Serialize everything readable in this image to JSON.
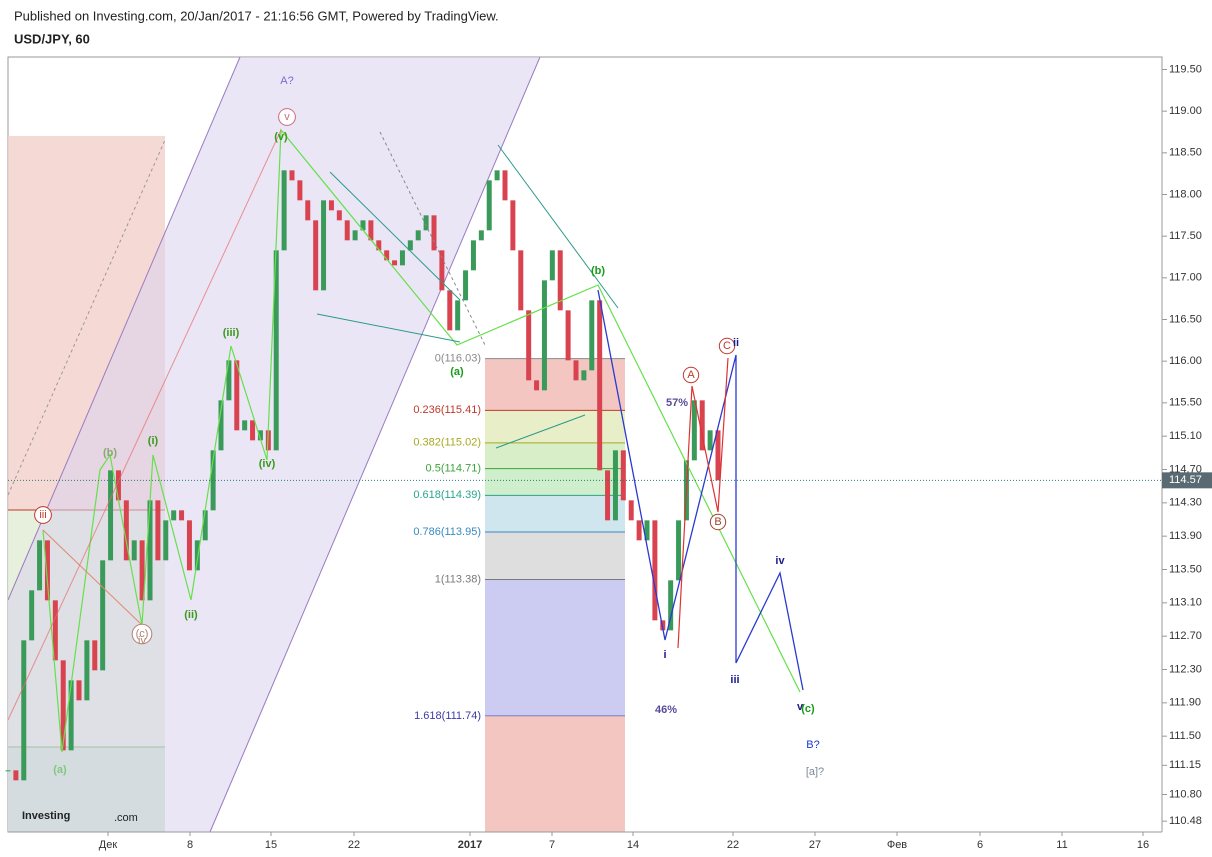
{
  "header": {
    "published": "Published on Investing.com, 20/Jan/2017 - 21:16:56 GMT, Powered by TradingView.",
    "symbol": "USD/JPY, 60"
  },
  "chart_data": {
    "type": "candlestick",
    "series": [
      {
        "name": "USD/JPY",
        "color": "#3a9a5a",
        "values": [
          111.09,
          110.97,
          112.65,
          113.25,
          113.85,
          113.13,
          112.41,
          111.33,
          112.17,
          111.93,
          112.65,
          112.29,
          113.61,
          114.69,
          114.33,
          113.61,
          113.85,
          113.13,
          114.33,
          113.61,
          114.09,
          114.21,
          114.09,
          113.49,
          113.85,
          114.21,
          114.93,
          115.53,
          116.01,
          115.17,
          115.29,
          115.05,
          115.17,
          114.93,
          117.33,
          118.29,
          118.17,
          117.93,
          117.69,
          116.85,
          117.93,
          117.81,
          117.69,
          117.45,
          117.57,
          117.69,
          117.45,
          117.33,
          117.21,
          117.15,
          117.33,
          117.45,
          117.57,
          117.75,
          117.33,
          116.85,
          116.37,
          116.73,
          117.09,
          117.45,
          117.57,
          118.17,
          118.29,
          117.93,
          117.33,
          116.61,
          115.77,
          115.65,
          116.97,
          117.33,
          116.61,
          116.01,
          115.77,
          115.89,
          116.73,
          114.69,
          114.09,
          114.93,
          114.33,
          114.09,
          113.85,
          114.09,
          112.89,
          112.77,
          113.37,
          114.09,
          114.81,
          115.53,
          114.93,
          115.17,
          114.57
        ]
      }
    ],
    "down_color": "#d9434f",
    "ylim": [
      110.35,
      119.65
    ],
    "yticks": [
      {
        "value": 119.5,
        "label": "119.50"
      },
      {
        "value": 119,
        "label": "119.00"
      },
      {
        "value": 118.5,
        "label": "118.50"
      },
      {
        "value": 118,
        "label": "118.00"
      },
      {
        "value": 117.5,
        "label": "117.50"
      },
      {
        "value": 117,
        "label": "117.00"
      },
      {
        "value": 116.5,
        "label": "116.50"
      },
      {
        "value": 116,
        "label": "116.00"
      },
      {
        "value": 115.5,
        "label": "115.50"
      },
      {
        "value": 115.1,
        "label": "115.10"
      },
      {
        "value": 114.7,
        "label": "114.70"
      },
      {
        "value": 114.3,
        "label": "114.30"
      },
      {
        "value": 113.9,
        "label": "113.90"
      },
      {
        "value": 113.5,
        "label": "113.50"
      },
      {
        "value": 113.1,
        "label": "113.10"
      },
      {
        "value": 112.7,
        "label": "112.70"
      },
      {
        "value": 112.3,
        "label": "112.30"
      },
      {
        "value": 111.9,
        "label": "111.90"
      },
      {
        "value": 111.5,
        "label": "111.50"
      },
      {
        "value": 111.15,
        "label": "111.15"
      },
      {
        "value": 110.8,
        "label": "110.80"
      },
      {
        "value": 110.48,
        "label": "110.48"
      }
    ],
    "x_tick_labels": [
      "Дек",
      "8",
      "15",
      "22",
      "2017",
      "7",
      "14",
      "22",
      "27",
      "Фев",
      "6",
      "11",
      "16"
    ],
    "last_price": 114.57,
    "fib_levels": [
      {
        "label": "0(116.03)",
        "value": 116.03,
        "color": "#8a8a8a"
      },
      {
        "label": "0.236(115.41)",
        "value": 115.41,
        "color": "#c0392b"
      },
      {
        "label": "0.382(115.02)",
        "value": 115.02,
        "color": "#a8a820"
      },
      {
        "label": "0.5(114.71)",
        "value": 114.71,
        "color": "#3aa53a"
      },
      {
        "label": "0.618(114.39)",
        "value": 114.39,
        "color": "#2aa58a"
      },
      {
        "label": "0.786(113.95)",
        "value": 113.95,
        "color": "#3a8ac0"
      },
      {
        "label": "1(113.38)",
        "value": 113.38,
        "color": "#7a7a7a"
      },
      {
        "label": "1.618(111.74)",
        "value": 111.74,
        "color": "#3a3aa8"
      }
    ],
    "annotations": [
      "(a)",
      "(b)",
      "(c)",
      "iv",
      "iii",
      "(i)",
      "(ii)",
      "(iii)",
      "(iv)",
      "(v)",
      "v",
      "A?",
      "(a)",
      "(b)",
      "A",
      "B",
      "C",
      "ii",
      "i",
      "iii",
      "iv",
      "v",
      "(c)",
      "B?",
      "[a]?",
      "57%",
      "46%"
    ]
  },
  "logo": {
    "brand": "Investing",
    "suffix": ".com"
  }
}
